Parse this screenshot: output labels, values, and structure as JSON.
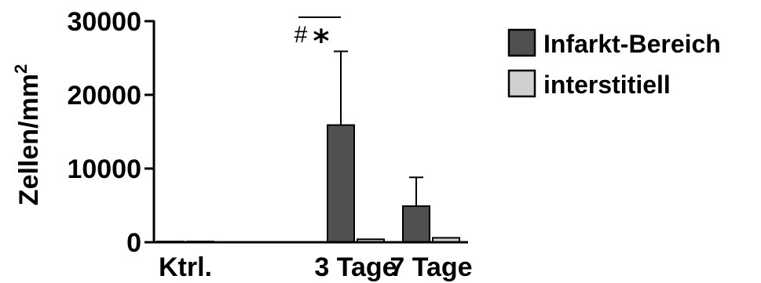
{
  "chart_data": {
    "type": "bar",
    "ylabel": "Zellen/mm",
    "ylabel_superscript": "2",
    "ylim": [
      0,
      30000
    ],
    "yticks": [
      "0",
      "10000",
      "20000",
      "30000"
    ],
    "categories": [
      "Ktrl.",
      "3 Tage",
      "7 Tage"
    ],
    "series": [
      {
        "name": "Infarkt-Bereich",
        "color": "#505050",
        "values": [
          0,
          15900,
          4900
        ],
        "errors": [
          0,
          10000,
          3900
        ]
      },
      {
        "name": "interstitiell",
        "color": "#d0d0d0",
        "values": [
          100,
          400,
          600
        ],
        "errors": [
          0,
          0,
          0
        ]
      }
    ],
    "legend_position": "top-right",
    "annotations": [
      {
        "text": "#",
        "category": "3 Tage"
      },
      {
        "text": "*",
        "category": "3 Tage"
      }
    ]
  }
}
